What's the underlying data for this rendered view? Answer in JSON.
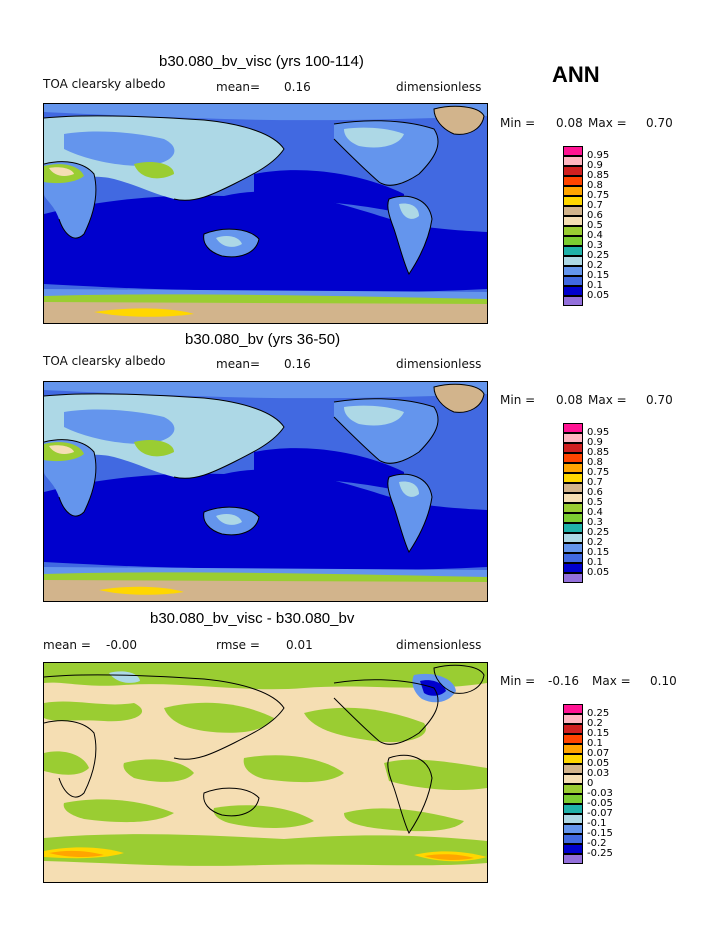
{
  "header": {
    "season": "ANN"
  },
  "panels": [
    {
      "title": "b30.080_bv_visc (yrs 100-114)",
      "left_label": "TOA clearsky albedo",
      "stat_label": "mean=",
      "stat_value": "0.16",
      "units": "dimensionless",
      "min_label": "Min =",
      "min_value": "0.08",
      "max_label": "Max =",
      "max_value": "0.70",
      "colorbar": {
        "levels": [
          "0.95",
          "0.9",
          "0.85",
          "0.8",
          "0.75",
          "0.7",
          "0.6",
          "0.5",
          "0.4",
          "0.3",
          "0.25",
          "0.2",
          "0.15",
          "0.1",
          "0.05"
        ],
        "colors": [
          "#ff1493",
          "#ffb6c1",
          "#d02020",
          "#ff4500",
          "#ffa500",
          "#ffd700",
          "#d2b48c",
          "#f5deb3",
          "#9acd32",
          "#7ccd32",
          "#20b2aa",
          "#add8e6",
          "#6495ed",
          "#4169e1",
          "#0000cd",
          "#9370db"
        ]
      }
    },
    {
      "title": "b30.080_bv (yrs 36-50)",
      "left_label": "TOA clearsky albedo",
      "stat_label": "mean=",
      "stat_value": "0.16",
      "units": "dimensionless",
      "min_label": "Min =",
      "min_value": "0.08",
      "max_label": "Max =",
      "max_value": "0.70",
      "colorbar": {
        "levels": [
          "0.95",
          "0.9",
          "0.85",
          "0.8",
          "0.75",
          "0.7",
          "0.6",
          "0.5",
          "0.4",
          "0.3",
          "0.25",
          "0.2",
          "0.15",
          "0.1",
          "0.05"
        ],
        "colors": [
          "#ff1493",
          "#ffb6c1",
          "#d02020",
          "#ff4500",
          "#ffa500",
          "#ffd700",
          "#d2b48c",
          "#f5deb3",
          "#9acd32",
          "#7ccd32",
          "#20b2aa",
          "#add8e6",
          "#6495ed",
          "#4169e1",
          "#0000cd",
          "#9370db"
        ]
      }
    },
    {
      "title": "b30.080_bv_visc - b30.080_bv",
      "left_label": "mean =",
      "left_value": "-0.00",
      "stat_label": "rmse =",
      "stat_value": "0.01",
      "units": "dimensionless",
      "min_label": "Min =",
      "min_value": "-0.16",
      "max_label": "Max =",
      "max_value": "0.10",
      "colorbar": {
        "levels": [
          "0.25",
          "0.2",
          "0.15",
          "0.1",
          "0.07",
          "0.05",
          "0.03",
          "0",
          "-0.03",
          "-0.05",
          "-0.07",
          "-0.1",
          "-0.15",
          "-0.2",
          "-0.25"
        ],
        "colors": [
          "#ff1493",
          "#ffb6c1",
          "#d02020",
          "#ff4500",
          "#ffa500",
          "#ffd700",
          "#d2b48c",
          "#f5deb3",
          "#9acd32",
          "#7ccd32",
          "#20b2aa",
          "#add8e6",
          "#6495ed",
          "#4169e1",
          "#0000cd",
          "#9370db"
        ]
      }
    }
  ]
}
